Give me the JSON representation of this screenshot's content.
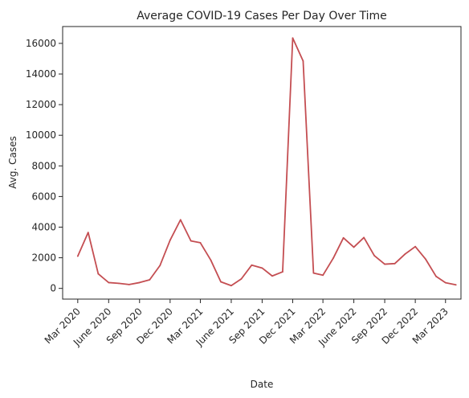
{
  "chart_data": {
    "type": "line",
    "title": "Average COVID-19 Cases Per Day Over Time",
    "xlabel": "Date",
    "ylabel": "Avg. Cases",
    "x_tick_labels": [
      "Mar 2020",
      "June 2020",
      "Sep 2020",
      "Dec 2020",
      "Mar 2021",
      "June 2021",
      "Sep 2021",
      "Dec 2021",
      "Mar 2022",
      "June 2022",
      "Sep 2022",
      "Dec 2022",
      "Mar 2023"
    ],
    "y_ticks": [
      0,
      2000,
      4000,
      6000,
      8000,
      10000,
      12000,
      14000,
      16000
    ],
    "ylim": [
      -700,
      17100
    ],
    "xlim": [
      "2020-01-16",
      "2023-04-16"
    ],
    "grid": false,
    "series": [
      {
        "color": "#c44e52",
        "x": [
          "2020-03-01",
          "2020-04-01",
          "2020-05-01",
          "2020-06-01",
          "2020-07-01",
          "2020-08-01",
          "2020-09-01",
          "2020-10-01",
          "2020-11-01",
          "2020-12-01",
          "2021-01-01",
          "2021-02-01",
          "2021-03-01",
          "2021-04-01",
          "2021-05-01",
          "2021-06-01",
          "2021-07-01",
          "2021-08-01",
          "2021-09-01",
          "2021-10-01",
          "2021-11-01",
          "2021-12-01",
          "2022-01-01",
          "2022-02-01",
          "2022-03-01",
          "2022-04-01",
          "2022-05-01",
          "2022-06-01",
          "2022-07-01",
          "2022-08-01",
          "2022-09-01",
          "2022-10-01",
          "2022-11-01",
          "2022-12-01",
          "2023-01-01",
          "2023-02-01",
          "2023-03-01",
          "2023-04-01"
        ],
        "y": [
          2100,
          3650,
          950,
          380,
          330,
          250,
          380,
          560,
          1500,
          3150,
          4480,
          3100,
          2980,
          1850,
          430,
          180,
          620,
          1520,
          1330,
          810,
          1080,
          16350,
          14850,
          1000,
          860,
          1980,
          3300,
          2690,
          3320,
          2140,
          1580,
          1620,
          2250,
          2730,
          1900,
          780,
          370,
          230
        ]
      }
    ]
  }
}
